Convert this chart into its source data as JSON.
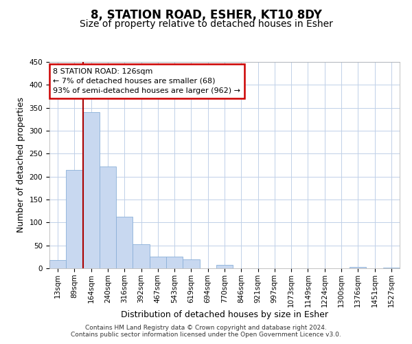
{
  "title": "8, STATION ROAD, ESHER, KT10 8DY",
  "subtitle": "Size of property relative to detached houses in Esher",
  "xlabel": "Distribution of detached houses by size in Esher",
  "ylabel": "Number of detached properties",
  "bar_labels": [
    "13sqm",
    "89sqm",
    "164sqm",
    "240sqm",
    "316sqm",
    "392sqm",
    "467sqm",
    "543sqm",
    "619sqm",
    "694sqm",
    "770sqm",
    "846sqm",
    "921sqm",
    "997sqm",
    "1073sqm",
    "1149sqm",
    "1224sqm",
    "1300sqm",
    "1376sqm",
    "1451sqm",
    "1527sqm"
  ],
  "bar_values": [
    18,
    215,
    340,
    222,
    113,
    53,
    26,
    25,
    20,
    0,
    8,
    0,
    0,
    0,
    0,
    0,
    0,
    0,
    3,
    0,
    2
  ],
  "bar_color": "#c8d8f0",
  "bar_edge_color": "#8ab0d8",
  "vline_color": "#aa0000",
  "annotation_line1": "8 STATION ROAD: 126sqm",
  "annotation_line2": "← 7% of detached houses are smaller (68)",
  "annotation_line3": "93% of semi-detached houses are larger (962) →",
  "annotation_box_facecolor": "white",
  "annotation_box_edgecolor": "#cc0000",
  "ylim": [
    0,
    450
  ],
  "yticks": [
    0,
    50,
    100,
    150,
    200,
    250,
    300,
    350,
    400,
    450
  ],
  "footer_line1": "Contains HM Land Registry data © Crown copyright and database right 2024.",
  "footer_line2": "Contains public sector information licensed under the Open Government Licence v3.0.",
  "background_color": "#ffffff",
  "grid_color": "#c0d0e8",
  "title_fontsize": 12,
  "subtitle_fontsize": 10,
  "axis_label_fontsize": 9,
  "tick_fontsize": 7.5,
  "footer_fontsize": 6.5
}
